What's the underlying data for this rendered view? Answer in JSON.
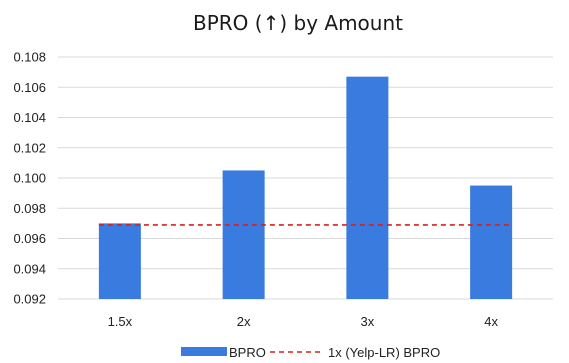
{
  "chart_data": {
    "type": "bar",
    "title": "BPRO (↑) by Amount",
    "categories": [
      "1.5x",
      "2x",
      "3x",
      "4x"
    ],
    "series": [
      {
        "name": "BPRO",
        "values": [
          0.097,
          0.1005,
          0.1067,
          0.0995
        ],
        "color": "#3a7be0"
      }
    ],
    "reference_line": {
      "name": "1x (Yelp-LR) BPRO",
      "value": 0.0969,
      "color": "#d62020",
      "style": "dashed"
    },
    "ylim": [
      0.092,
      0.108
    ],
    "yticks": [
      "0.092",
      "0.094",
      "0.096",
      "0.098",
      "0.100",
      "0.102",
      "0.104",
      "0.106",
      "0.108"
    ],
    "grid": "horizontal",
    "legend": "bottom-center",
    "xlabel": "",
    "ylabel": ""
  }
}
